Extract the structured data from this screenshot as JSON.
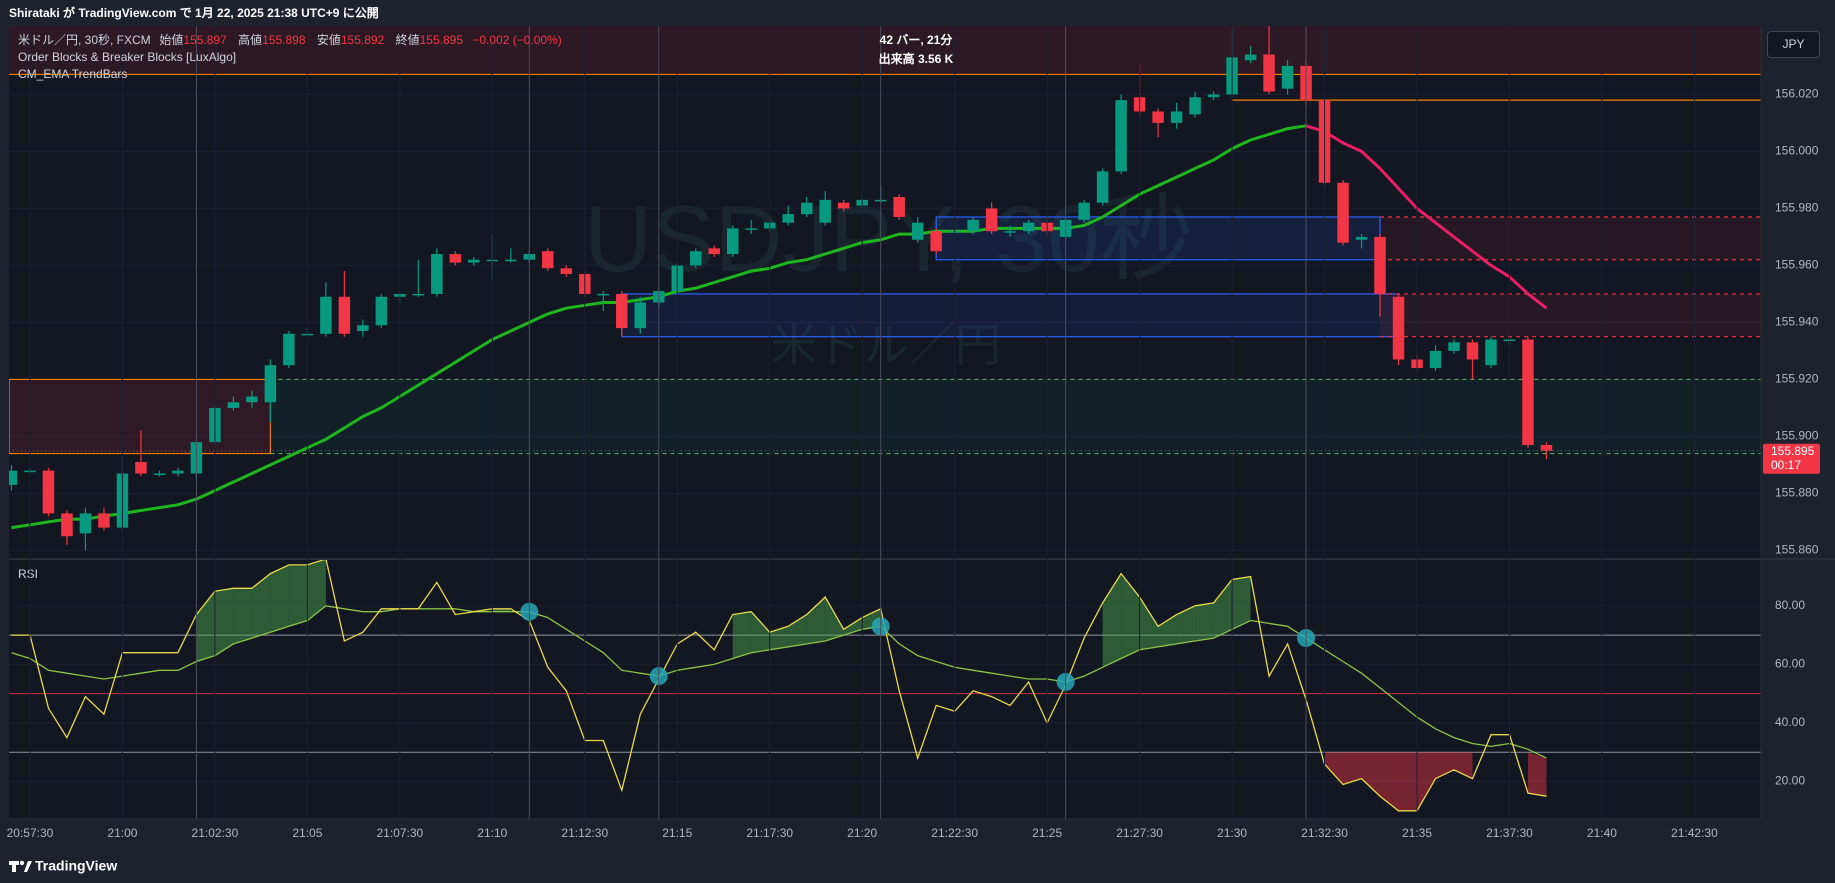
{
  "ui": {
    "header": "Shirataki が TradingView.com で 1月 22, 2025 21:38 UTC+9 に公開",
    "symbol": "米ドル／円, 30秒, FXCM",
    "ohlc_labels": [
      "始値",
      "高値",
      "安値",
      "終値"
    ],
    "change": "−0.002 (−0.00%)",
    "indicators": [
      "Order Blocks & Breaker Blocks [LuxAlgo]",
      "CM_EMA TrendBars"
    ],
    "measure": [
      "42 バー, 21分",
      "出来高 3.56 K"
    ],
    "currency": "JPY",
    "countdown": "00:17",
    "watermark": [
      "USDJPY, 30秒",
      "米ドル／円"
    ],
    "footer": "TradingView"
  },
  "chart_data": {
    "type": "candlestick",
    "x": [
      "20:57:00",
      "20:57:30",
      "20:58:00",
      "20:58:30",
      "20:59:00",
      "20:59:30",
      "21:00:00",
      "21:00:30",
      "21:01:00",
      "21:01:30",
      "21:02:00",
      "21:02:30",
      "21:03:00",
      "21:03:30",
      "21:04:00",
      "21:04:30",
      "21:05:00",
      "21:05:30",
      "21:06:00",
      "21:06:30",
      "21:07:00",
      "21:07:30",
      "21:08:00",
      "21:08:30",
      "21:09:00",
      "21:09:30",
      "21:10:00",
      "21:10:30",
      "21:11:00",
      "21:11:30",
      "21:12:00",
      "21:12:30",
      "21:13:00",
      "21:13:30",
      "21:14:00",
      "21:14:30",
      "21:15:00",
      "21:15:30",
      "21:16:00",
      "21:16:30",
      "21:17:00",
      "21:17:30",
      "21:18:00",
      "21:18:30",
      "21:19:00",
      "21:19:30",
      "21:20:00",
      "21:20:30",
      "21:21:00",
      "21:21:30",
      "21:22:00",
      "21:22:30",
      "21:23:00",
      "21:23:30",
      "21:24:00",
      "21:24:30",
      "21:25:00",
      "21:25:30",
      "21:26:00",
      "21:26:30",
      "21:27:00",
      "21:27:30",
      "21:28:00",
      "21:28:30",
      "21:29:00",
      "21:29:30",
      "21:30:00",
      "21:30:30",
      "21:31:00",
      "21:31:30",
      "21:32:00",
      "21:32:30",
      "21:33:00",
      "21:33:30",
      "21:34:00",
      "21:34:30",
      "21:35:00",
      "21:35:30",
      "21:36:00",
      "21:36:30",
      "21:37:00",
      "21:37:30",
      "21:38:00",
      "21:38:30"
    ],
    "open": [
      155.883,
      155.888,
      155.888,
      155.873,
      155.866,
      155.873,
      155.868,
      155.891,
      155.887,
      155.887,
      155.887,
      155.898,
      155.91,
      155.912,
      155.912,
      155.925,
      155.936,
      155.936,
      155.949,
      155.937,
      155.939,
      155.949,
      155.95,
      155.95,
      155.964,
      155.961,
      155.962,
      155.962,
      155.962,
      155.965,
      155.959,
      155.957,
      155.95,
      155.95,
      155.938,
      155.947,
      155.951,
      155.96,
      155.966,
      155.964,
      155.973,
      155.973,
      155.975,
      155.978,
      155.975,
      155.982,
      155.981,
      155.983,
      155.984,
      155.969,
      155.972,
      155.972,
      155.972,
      155.98,
      155.972,
      155.972,
      155.975,
      155.97,
      155.976,
      155.982,
      155.993,
      156.019,
      156.014,
      156.01,
      156.013,
      156.019,
      156.02,
      156.032,
      156.034,
      156.022,
      156.03,
      156.018,
      155.989,
      155.969,
      155.97,
      155.949,
      155.927,
      155.924,
      155.93,
      155.933,
      155.925,
      155.934,
      155.934,
      155.897
    ],
    "high": [
      155.89,
      155.889,
      155.889,
      155.874,
      155.875,
      155.875,
      155.893,
      155.902,
      155.888,
      155.889,
      155.899,
      155.911,
      155.914,
      155.916,
      155.927,
      155.937,
      155.938,
      155.954,
      155.958,
      155.941,
      155.95,
      155.951,
      155.962,
      155.966,
      155.965,
      155.963,
      155.971,
      155.966,
      155.965,
      155.966,
      155.96,
      155.958,
      155.951,
      155.951,
      155.949,
      155.952,
      155.961,
      155.966,
      155.967,
      155.974,
      155.976,
      155.976,
      155.981,
      155.984,
      155.986,
      155.983,
      155.984,
      155.988,
      155.985,
      155.977,
      155.973,
      155.973,
      155.977,
      155.982,
      155.974,
      155.976,
      155.977,
      155.977,
      155.983,
      155.994,
      156.02,
      156.031,
      156.015,
      156.017,
      156.021,
      156.021,
      156.043,
      156.037,
      156.044,
      156.032,
      156.032,
      156.019,
      155.99,
      155.971,
      155.971,
      155.95,
      155.929,
      155.932,
      155.934,
      155.934,
      155.935,
      155.935,
      155.935,
      155.898
    ],
    "low": [
      155.881,
      155.887,
      155.872,
      155.862,
      155.86,
      155.867,
      155.867,
      155.886,
      155.886,
      155.886,
      155.885,
      155.897,
      155.909,
      155.91,
      155.905,
      155.924,
      155.935,
      155.935,
      155.935,
      155.935,
      155.938,
      155.947,
      155.949,
      155.949,
      155.96,
      155.96,
      155.955,
      155.961,
      155.961,
      155.958,
      155.956,
      155.949,
      155.944,
      155.935,
      155.936,
      155.945,
      155.95,
      155.959,
      155.963,
      155.963,
      155.971,
      155.972,
      155.974,
      155.977,
      155.974,
      155.979,
      155.98,
      155.982,
      155.976,
      155.968,
      155.964,
      155.971,
      155.971,
      155.971,
      155.97,
      155.971,
      155.97,
      155.969,
      155.975,
      155.981,
      155.992,
      156.012,
      156.005,
      156.008,
      156.012,
      156.018,
      156.019,
      156.031,
      156.02,
      156.02,
      156.016,
      155.988,
      155.967,
      155.966,
      155.942,
      155.925,
      155.923,
      155.923,
      155.929,
      155.92,
      155.924,
      155.932,
      155.896,
      155.892
    ],
    "close": [
      155.888,
      155.888,
      155.873,
      155.865,
      155.873,
      155.868,
      155.887,
      155.887,
      155.887,
      155.888,
      155.898,
      155.91,
      155.912,
      155.914,
      155.925,
      155.936,
      155.936,
      155.949,
      155.936,
      155.939,
      155.949,
      155.95,
      155.95,
      155.964,
      155.961,
      155.962,
      155.962,
      155.962,
      155.964,
      155.959,
      155.957,
      155.95,
      155.95,
      155.938,
      155.947,
      155.951,
      155.96,
      155.965,
      155.964,
      155.973,
      155.973,
      155.975,
      155.978,
      155.982,
      155.983,
      155.98,
      155.983,
      155.983,
      155.977,
      155.975,
      155.965,
      155.972,
      155.976,
      155.972,
      155.972,
      155.975,
      155.972,
      155.976,
      155.982,
      155.993,
      156.018,
      156.014,
      156.01,
      156.014,
      156.019,
      156.02,
      156.033,
      156.034,
      156.021,
      156.03,
      156.018,
      155.989,
      155.968,
      155.97,
      155.95,
      155.927,
      155.924,
      155.93,
      155.933,
      155.927,
      155.934,
      155.934,
      155.897,
      155.895
    ],
    "up_color": "#089981",
    "down_color": "#f23645",
    "xlim": [
      "20:56:56",
      "21:44:18"
    ],
    "xticks": [
      "20:57:30",
      "21:00",
      "21:02:30",
      "21:05",
      "21:07:30",
      "21:10",
      "21:12:30",
      "21:15",
      "21:17:30",
      "21:20",
      "21:22:30",
      "21:25",
      "21:27:30",
      "21:30",
      "21:32:30",
      "21:35",
      "21:37:30",
      "21:40",
      "21:42:30"
    ],
    "ylim": [
      155.857,
      156.044
    ],
    "yticks": [
      {
        "value": 156.02,
        "label": "156.020"
      },
      {
        "value": 156.0,
        "label": "156.000"
      },
      {
        "value": 155.98,
        "label": "155.980"
      },
      {
        "value": 155.96,
        "label": "155.960"
      },
      {
        "value": 155.94,
        "label": "155.940"
      },
      {
        "value": 155.92,
        "label": "155.920"
      },
      {
        "value": 155.9,
        "label": "155.900"
      },
      {
        "value": 155.88,
        "label": "155.880"
      },
      {
        "value": 155.86,
        "label": "155.860"
      }
    ],
    "grid": true,
    "ema": {
      "up_color": "#1fb51f",
      "down_color": "#e91e63",
      "values": [
        155.868,
        155.869,
        155.87,
        155.871,
        155.871,
        155.872,
        155.873,
        155.874,
        155.875,
        155.876,
        155.878,
        155.881,
        155.884,
        155.887,
        155.89,
        155.893,
        155.896,
        155.899,
        155.903,
        155.907,
        155.91,
        155.914,
        155.918,
        155.922,
        155.926,
        155.93,
        155.934,
        155.937,
        155.94,
        155.943,
        155.945,
        155.946,
        155.947,
        155.947,
        155.948,
        155.949,
        155.951,
        155.952,
        155.954,
        155.956,
        155.958,
        155.959,
        155.961,
        155.962,
        155.964,
        155.966,
        155.968,
        155.969,
        155.971,
        155.971,
        155.972,
        155.972,
        155.972,
        155.973,
        155.973,
        155.973,
        155.973,
        155.973,
        155.974,
        155.977,
        155.981,
        155.985,
        155.988,
        155.991,
        155.994,
        155.997,
        156.001,
        156.004,
        156.006,
        156.008,
        156.009,
        156.007,
        156.003,
        156.0,
        155.994,
        155.987,
        155.98,
        155.975,
        155.97,
        155.965,
        155.96,
        155.956,
        155.95,
        155.945
      ]
    },
    "zones": [
      {
        "low": 156.027,
        "high": 156.05,
        "fill": "rgba(178,40,51,0.16)"
      },
      {
        "to": "21:04:00",
        "low": 155.894,
        "high": 155.92,
        "fill": "rgba(178,40,51,0.18)",
        "border": "#f57c00"
      },
      {
        "from": "21:04:00",
        "low": 155.894,
        "high": 155.92,
        "fill": "rgba(8,153,129,0.07)"
      },
      {
        "from": "21:34:00",
        "low": 155.962,
        "high": 155.977,
        "fill": "rgba(242,54,69,0.09)"
      },
      {
        "from": "21:34:00",
        "low": 155.935,
        "high": 155.95,
        "fill": "rgba(242,54,69,0.09)"
      },
      {
        "from": "21:22:00",
        "to": "21:34:00",
        "low": 155.962,
        "high": 155.977,
        "fill": "rgba(41,98,255,0.12)",
        "border": "#2962ff"
      },
      {
        "from": "21:13:30",
        "to": "21:34:30",
        "low": 155.935,
        "high": 155.95,
        "fill": "rgba(41,98,255,0.10)",
        "border": "#2962ff"
      }
    ],
    "hlines": [
      {
        "price": 156.027,
        "color": "#f57c00"
      },
      {
        "price": 156.018,
        "from": "21:30:00",
        "color": "#f57c00"
      },
      {
        "price": 155.92,
        "from": "21:04:00",
        "color": "#4caf50",
        "dash": true
      },
      {
        "price": 155.894,
        "from": "21:04:00",
        "color": "#4caf50",
        "dash": true
      },
      {
        "price": 155.977,
        "from": "21:34:00",
        "color": "#f23645",
        "dash": true
      },
      {
        "price": 155.962,
        "from": "21:34:00",
        "color": "#f23645",
        "dash": true
      },
      {
        "price": 155.95,
        "from": "21:34:00",
        "color": "#f23645",
        "dash": true
      },
      {
        "price": 155.935,
        "from": "21:34:00",
        "color": "#f23645",
        "dash": true
      }
    ],
    "vlines": [
      "21:02:00",
      "21:11:00",
      "21:14:30",
      "21:20:30",
      "21:25:30",
      "21:32:00"
    ],
    "rsi": {
      "title": "RSI",
      "color": "#e8d94a",
      "ma_color": "#8bc34a",
      "values": [
        70,
        70,
        45,
        35,
        49,
        43,
        64,
        64,
        64,
        64,
        77,
        85,
        86,
        86,
        91,
        94,
        94,
        96,
        68,
        71,
        79,
        79,
        79,
        88,
        77,
        78,
        79,
        79,
        75,
        59,
        51,
        34,
        34,
        17,
        43,
        55,
        67,
        71,
        65,
        77,
        78,
        71,
        73,
        77,
        83,
        72,
        76,
        79,
        51,
        28,
        46,
        44,
        51,
        49,
        46,
        54,
        40,
        53,
        69,
        81,
        91,
        83,
        73,
        77,
        80,
        81,
        89,
        90,
        56,
        67,
        48,
        26,
        19,
        21,
        15,
        10,
        10,
        21,
        24,
        21,
        36,
        36,
        16,
        15
      ],
      "ma_values": [
        64,
        62,
        58,
        57,
        56,
        55,
        56,
        57,
        58,
        58,
        61,
        63,
        67,
        69,
        71,
        73,
        75,
        80,
        79,
        78,
        78,
        79,
        79,
        79,
        79,
        78,
        78,
        78,
        78,
        76,
        72,
        68,
        64,
        58,
        57,
        56,
        58,
        59,
        60,
        62,
        64,
        65,
        66,
        67,
        68,
        70,
        72,
        73,
        67,
        63,
        61,
        59,
        58,
        57,
        56,
        55,
        55,
        54,
        56,
        59,
        62,
        65,
        66,
        67,
        68,
        69,
        72,
        75,
        74,
        73,
        69,
        65,
        61,
        57,
        52,
        47,
        42,
        38,
        35,
        33,
        32,
        33,
        31,
        28
      ],
      "ylim": [
        7.2,
        96
      ],
      "yticks": [
        {
          "value": 80,
          "label": "80.00"
        },
        {
          "value": 60,
          "label": "60.00"
        },
        {
          "value": 40,
          "label": "40.00"
        },
        {
          "value": 20,
          "label": "20.00"
        }
      ],
      "levels": [
        {
          "value": 70,
          "color": "#b2b5be"
        },
        {
          "value": 50,
          "color": "#f23645"
        },
        {
          "value": 30,
          "color": "#b2b5be"
        }
      ],
      "overbought_fill": "rgba(76,175,80,0.45)",
      "oversold_fill": "rgba(242,54,69,0.45)",
      "signals": [
        "21:11:00",
        "21:14:30",
        "21:20:30",
        "21:25:30",
        "21:32:00"
      ],
      "signal_color": "rgba(38,166,180,0.85)"
    }
  }
}
